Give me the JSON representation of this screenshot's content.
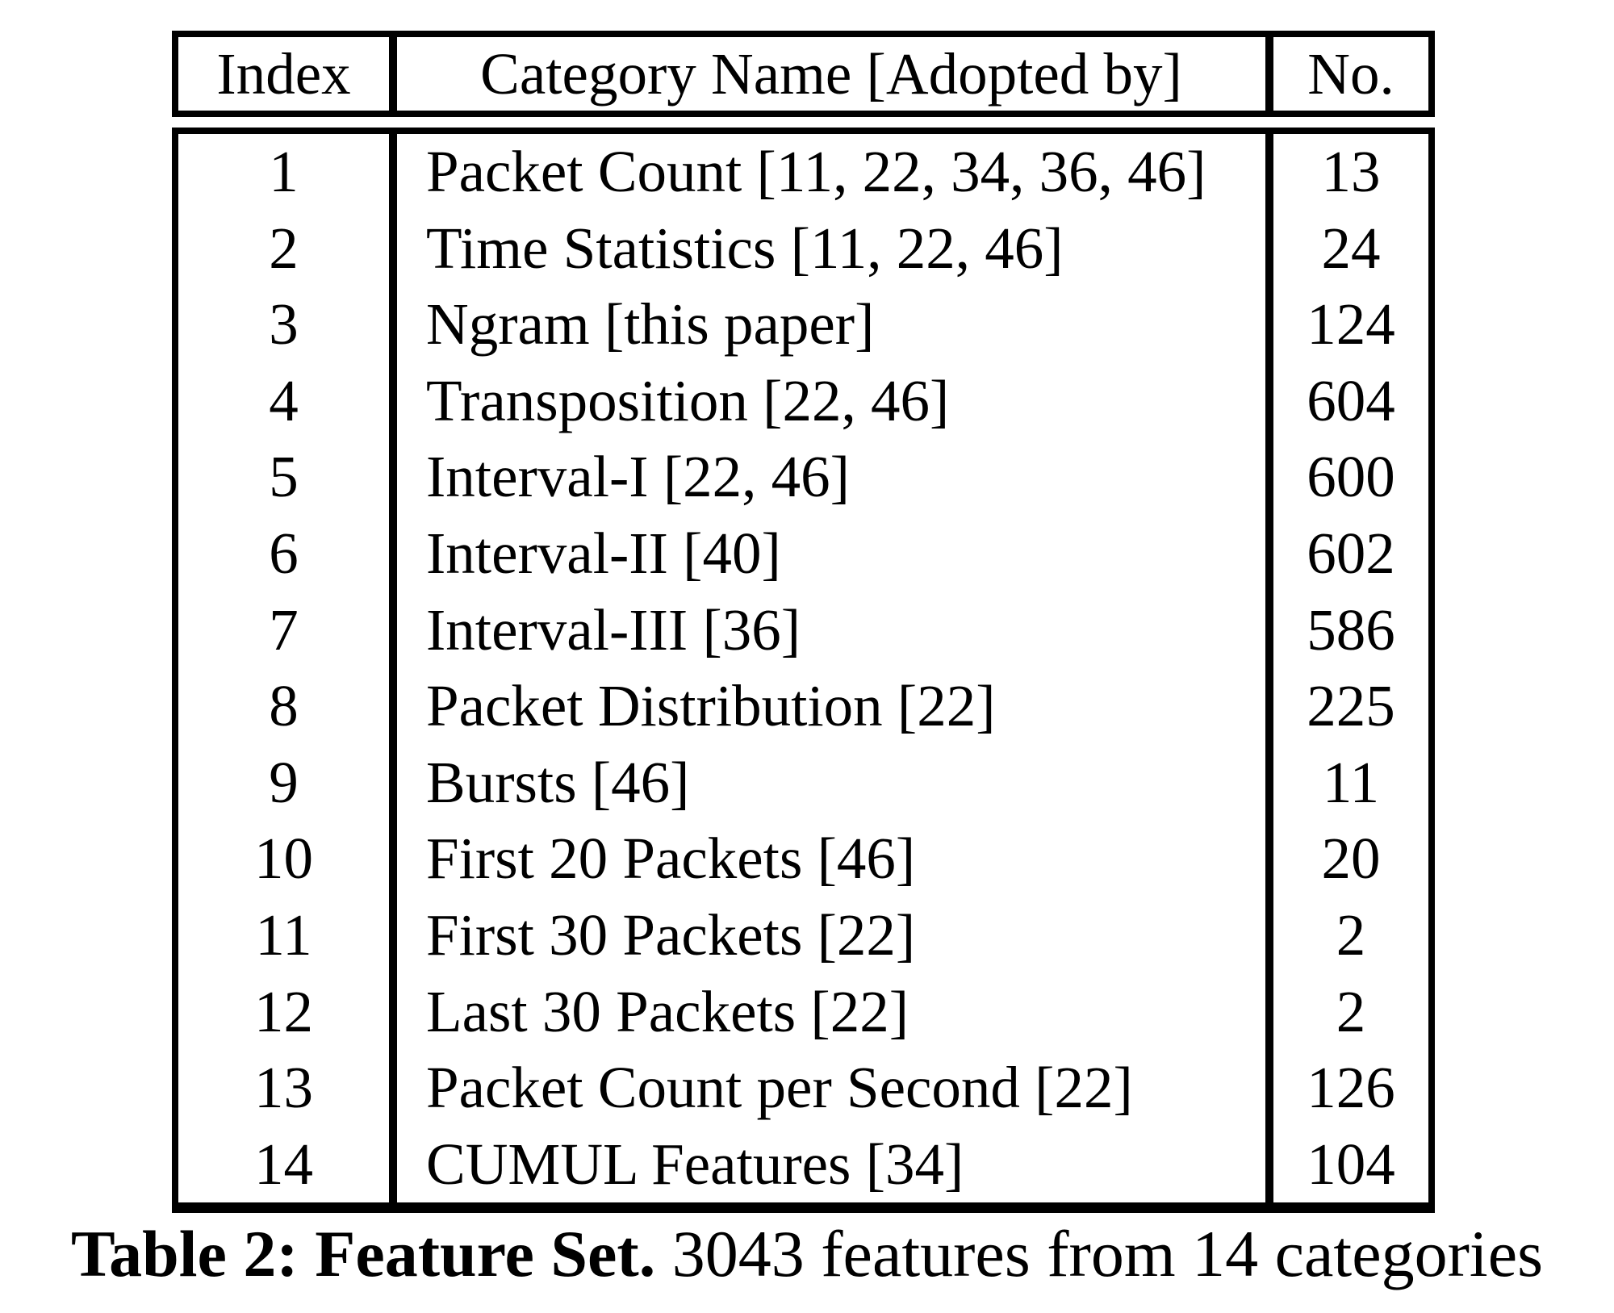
{
  "page": {
    "background_color": "#ffffff",
    "text_color": "#000000",
    "border_color": "#000000"
  },
  "table": {
    "headers": {
      "index": "Index",
      "category": "Category Name [Adopted by]",
      "no": "No."
    },
    "rows": [
      {
        "index": "1",
        "category": "Packet Count [11, 22, 34, 36, 46]",
        "no": "13"
      },
      {
        "index": "2",
        "category": "Time Statistics [11, 22, 46]",
        "no": "24"
      },
      {
        "index": "3",
        "category": "Ngram [this paper]",
        "no": "124"
      },
      {
        "index": "4",
        "category": "Transposition [22, 46]",
        "no": "604"
      },
      {
        "index": "5",
        "category": "Interval-I [22, 46]",
        "no": "600"
      },
      {
        "index": "6",
        "category": "Interval-II [40]",
        "no": "602"
      },
      {
        "index": "7",
        "category": "Interval-III [36]",
        "no": "586"
      },
      {
        "index": "8",
        "category": "Packet Distribution [22]",
        "no": "225"
      },
      {
        "index": "9",
        "category": "Bursts [46]",
        "no": "11"
      },
      {
        "index": "10",
        "category": "First 20 Packets [46]",
        "no": "20"
      },
      {
        "index": "11",
        "category": "First 30 Packets [22]",
        "no": "2"
      },
      {
        "index": "12",
        "category": "Last 30 Packets [22]",
        "no": "2"
      },
      {
        "index": "13",
        "category": "Packet Count per Second [22]",
        "no": "126"
      },
      {
        "index": "14",
        "category": "CUMUL Features [34]",
        "no": "104"
      }
    ]
  },
  "caption": {
    "bold": "Table 2: Feature Set.",
    "rest": " 3043 features from 14 categories"
  }
}
